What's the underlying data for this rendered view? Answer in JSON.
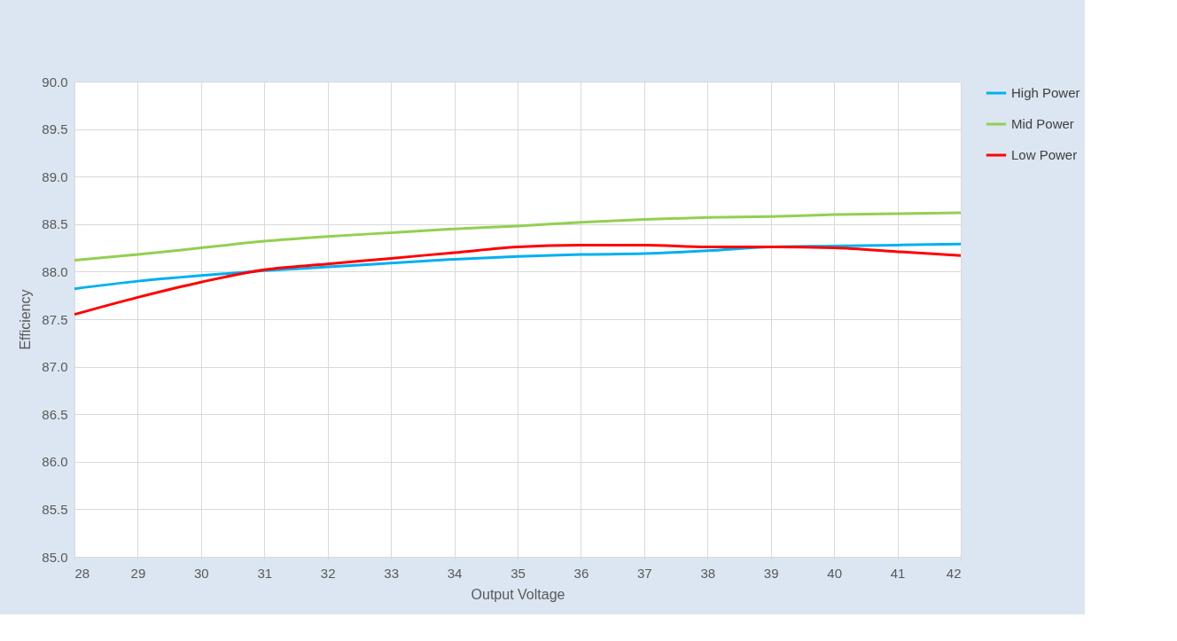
{
  "chart_data": {
    "type": "line",
    "xlabel": "Output Voltage",
    "ylabel": "Efficiency",
    "x": [
      28,
      29,
      30,
      31,
      32,
      33,
      34,
      35,
      36,
      37,
      38,
      39,
      40,
      41,
      42
    ],
    "xlim": [
      28,
      42
    ],
    "xticks": [
      28,
      29,
      30,
      31,
      32,
      33,
      34,
      35,
      36,
      37,
      38,
      39,
      40,
      41,
      42
    ],
    "ylim": [
      85,
      90
    ],
    "yticks": [
      {
        "value": 85,
        "label": "85.0"
      },
      {
        "value": 85.5,
        "label": "85.5"
      },
      {
        "value": 86,
        "label": "86.0"
      },
      {
        "value": 86.5,
        "label": "86.5"
      },
      {
        "value": 87,
        "label": "87.0"
      },
      {
        "value": 87.5,
        "label": "87.5"
      },
      {
        "value": 88,
        "label": "88.0"
      },
      {
        "value": 88.5,
        "label": "88.5"
      },
      {
        "value": 89,
        "label": "89.0"
      },
      {
        "value": 89.5,
        "label": "89.5"
      },
      {
        "value": 90,
        "label": "90.0"
      }
    ],
    "grid": true,
    "legend": "right",
    "marker": "none",
    "line_style": "solid",
    "series": [
      {
        "name": "High Power",
        "color": "#00b0f0",
        "values": [
          87.82,
          87.9,
          87.96,
          88.01,
          88.05,
          88.09,
          88.13,
          88.16,
          88.18,
          88.19,
          88.22,
          88.26,
          88.27,
          88.28,
          88.29
        ]
      },
      {
        "name": "Mid Power",
        "color": "#92d050",
        "values": [
          88.12,
          88.18,
          88.25,
          88.32,
          88.37,
          88.41,
          88.45,
          88.48,
          88.52,
          88.55,
          88.57,
          88.58,
          88.6,
          88.61,
          88.62
        ]
      },
      {
        "name": "Low Power",
        "color": "#ff0000",
        "values": [
          87.55,
          87.73,
          87.89,
          88.02,
          88.08,
          88.14,
          88.2,
          88.26,
          88.28,
          88.28,
          88.26,
          88.26,
          88.25,
          88.21,
          88.17
        ]
      }
    ]
  }
}
